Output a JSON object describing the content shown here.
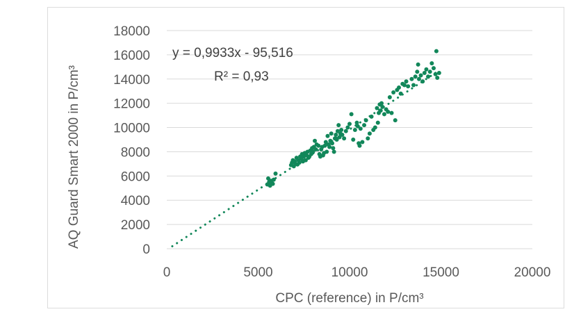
{
  "chart_data": {
    "type": "scatter",
    "xlabel": "CPC (reference) in P/cm³",
    "ylabel": "AQ Guard Smart 2000 in P/cm³",
    "xlim": [
      0,
      20000
    ],
    "ylim": [
      0,
      18000
    ],
    "x_ticks": [
      "0",
      "5000",
      "10000",
      "15000",
      "20000"
    ],
    "y_ticks": [
      "0",
      "2000",
      "4000",
      "6000",
      "8000",
      "10000",
      "12000",
      "14000",
      "16000",
      "18000"
    ],
    "grid": "horizontal",
    "legend": "none",
    "marker_color": "#12875a",
    "trendline": {
      "type": "linear",
      "style": "dotted",
      "slope": 0.9933,
      "intercept": -95.516,
      "x_range": [
        300,
        14800
      ],
      "equation_label": "y = 0,9933x - 95,516",
      "r2_label": "R² = 0,93"
    },
    "series": [
      {
        "points": [
          [
            5500,
            5300
          ],
          [
            5550,
            5800
          ],
          [
            5600,
            5500
          ],
          [
            5650,
            5200
          ],
          [
            5700,
            5600
          ],
          [
            5750,
            5400
          ],
          [
            5800,
            5350
          ],
          [
            5850,
            5700
          ],
          [
            5950,
            6200
          ],
          [
            6800,
            6900
          ],
          [
            6850,
            7100
          ],
          [
            6900,
            7300
          ],
          [
            6950,
            6800
          ],
          [
            7000,
            7200
          ],
          [
            7050,
            7000
          ],
          [
            7100,
            7500
          ],
          [
            7150,
            6950
          ],
          [
            7200,
            7300
          ],
          [
            7250,
            7100
          ],
          [
            7300,
            7600
          ],
          [
            7350,
            7400
          ],
          [
            7400,
            7800
          ],
          [
            7450,
            7200
          ],
          [
            7500,
            7600
          ],
          [
            7550,
            7900
          ],
          [
            7600,
            7300
          ],
          [
            7650,
            7700
          ],
          [
            7700,
            8000
          ],
          [
            7750,
            7500
          ],
          [
            7800,
            7600
          ],
          [
            7850,
            8100
          ],
          [
            7900,
            7800
          ],
          [
            7950,
            8300
          ],
          [
            8000,
            8000
          ],
          [
            8050,
            8400
          ],
          [
            8100,
            8900
          ],
          [
            8150,
            8200
          ],
          [
            8200,
            8600
          ],
          [
            8300,
            8500
          ],
          [
            8350,
            7800
          ],
          [
            8400,
            7600
          ],
          [
            8450,
            8200
          ],
          [
            8500,
            8400
          ],
          [
            8550,
            7700
          ],
          [
            8600,
            7900
          ],
          [
            8650,
            8500
          ],
          [
            8700,
            8800
          ],
          [
            8750,
            8000
          ],
          [
            8800,
            9300
          ],
          [
            8850,
            8600
          ],
          [
            8900,
            8400
          ],
          [
            8950,
            8900
          ],
          [
            9000,
            9500
          ],
          [
            9050,
            8700
          ],
          [
            9100,
            8300
          ],
          [
            9150,
            8000
          ],
          [
            9200,
            9100
          ],
          [
            9250,
            9400
          ],
          [
            9300,
            9000
          ],
          [
            9350,
            9700
          ],
          [
            9400,
            10200
          ],
          [
            9450,
            9200
          ],
          [
            9500,
            9500
          ],
          [
            9550,
            9800
          ],
          [
            9600,
            9400
          ],
          [
            9700,
            9100
          ],
          [
            9800,
            9700
          ],
          [
            9900,
            10000
          ],
          [
            10000,
            10300
          ],
          [
            10100,
            11100
          ],
          [
            10200,
            9000
          ],
          [
            10300,
            9800
          ],
          [
            10400,
            10400
          ],
          [
            10450,
            10100
          ],
          [
            10500,
            8700
          ],
          [
            10550,
            8500
          ],
          [
            10600,
            9900
          ],
          [
            10700,
            8800
          ],
          [
            10800,
            10200
          ],
          [
            10900,
            10600
          ],
          [
            11000,
            9100
          ],
          [
            11100,
            9500
          ],
          [
            11200,
            10900
          ],
          [
            11300,
            9800
          ],
          [
            11400,
            10000
          ],
          [
            11500,
            11600
          ],
          [
            11550,
            10400
          ],
          [
            11600,
            11200
          ],
          [
            11650,
            11900
          ],
          [
            11700,
            11400
          ],
          [
            11750,
            12000
          ],
          [
            11800,
            11700
          ],
          [
            11900,
            11100
          ],
          [
            12000,
            11500
          ],
          [
            12100,
            11300
          ],
          [
            12200,
            12500
          ],
          [
            12300,
            11200
          ],
          [
            12400,
            12900
          ],
          [
            12500,
            10600
          ],
          [
            12600,
            13100
          ],
          [
            12700,
            13300
          ],
          [
            12800,
            12800
          ],
          [
            12900,
            13600
          ],
          [
            13000,
            13500
          ],
          [
            13100,
            13800
          ],
          [
            13200,
            13400
          ],
          [
            13400,
            14000
          ],
          [
            13500,
            13500
          ],
          [
            13600,
            14200
          ],
          [
            13700,
            14600
          ],
          [
            13750,
            15200
          ],
          [
            13800,
            14000
          ],
          [
            13900,
            14300
          ],
          [
            14000,
            13800
          ],
          [
            14100,
            14500
          ],
          [
            14200,
            14800
          ],
          [
            14300,
            14200
          ],
          [
            14400,
            14600
          ],
          [
            14500,
            15300
          ],
          [
            14600,
            14900
          ],
          [
            14700,
            14400
          ],
          [
            14750,
            16300
          ],
          [
            14800,
            14100
          ],
          [
            14900,
            14500
          ]
        ]
      }
    ]
  }
}
